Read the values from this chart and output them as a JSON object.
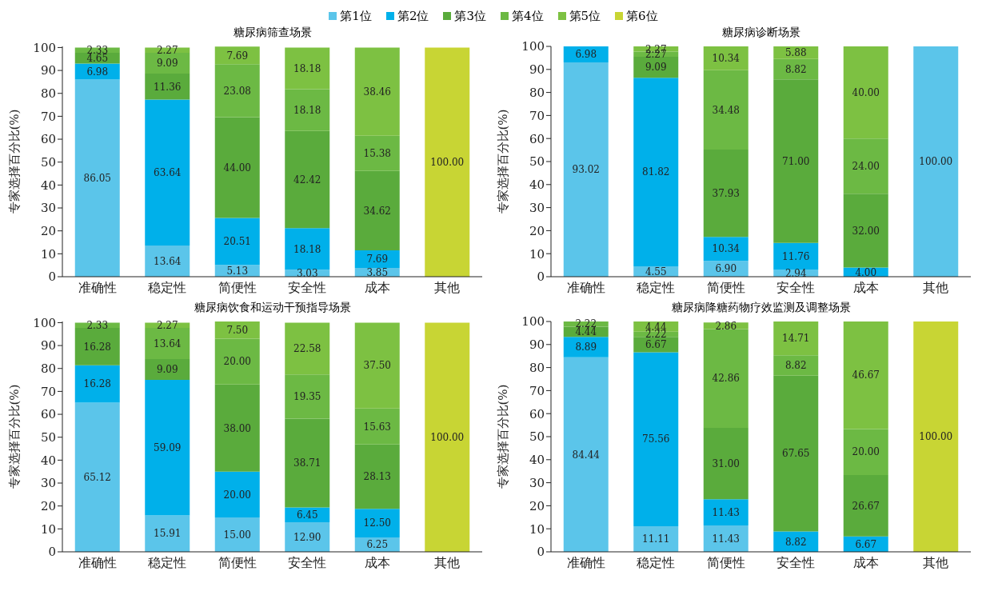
{
  "chart_data": [
    {
      "type": "bar",
      "stacked": true,
      "title": "糖尿病筛查场景",
      "ylabel": "专家选择百分比(%)",
      "legend": "top",
      "categories": [
        "准确性",
        "稳定性",
        "简便性",
        "安全性",
        "成本",
        "其他"
      ],
      "ylim": [
        0,
        100.5
      ],
      "yticks": [
        0,
        10,
        20,
        30,
        40,
        50,
        60,
        70,
        80,
        90,
        100
      ],
      "series": [
        {
          "name": "第1位",
          "color": "#5bc5ea",
          "values": [
            86.05,
            13.64,
            5.13,
            3.03,
            3.85,
            null
          ],
          "value_labels": [
            "86.05",
            "13.64",
            "5.13",
            "3.03",
            "3.85",
            null
          ]
        },
        {
          "name": "第2位",
          "color": "#00b0ea",
          "values": [
            6.98,
            63.64,
            20.51,
            18.18,
            7.69,
            null
          ],
          "value_labels": [
            "6.98",
            "63.64",
            "20.51",
            "18.18",
            "7.69",
            null
          ]
        },
        {
          "name": "第3位",
          "color": "#5aab3c",
          "values": [
            4.65,
            11.36,
            44.0,
            42.42,
            34.62,
            null
          ],
          "value_labels": [
            "4.65",
            "11.36",
            "44.00",
            "42.42",
            "34.62",
            null
          ]
        },
        {
          "name": "第4位",
          "color": "#6cb944",
          "values": [
            2.33,
            9.09,
            23.08,
            18.18,
            15.38,
            null
          ],
          "value_labels": [
            "2.33",
            "9.09",
            "23.08",
            "18.18",
            "15.38",
            null
          ]
        },
        {
          "name": "第5位",
          "color": "#7dc142",
          "values": [
            null,
            2.27,
            7.69,
            18.18,
            38.46,
            null
          ],
          "value_labels": [
            null,
            "2.27",
            "7.69",
            "18.18",
            "38.46",
            null
          ]
        },
        {
          "name": "第6位",
          "color": "#c8d534",
          "values": [
            null,
            null,
            null,
            null,
            null,
            100
          ],
          "value_labels": [
            null,
            null,
            null,
            null,
            null,
            "100.00"
          ]
        }
      ]
    },
    {
      "type": "bar",
      "stacked": true,
      "title": "糖尿病诊断场景",
      "ylabel": "专家选择百分比(%)",
      "categories": [
        "准确性",
        "稳定性",
        "简便性",
        "安全性",
        "成本",
        "其他"
      ],
      "ylim": [
        0,
        100
      ],
      "yticks": [
        0,
        10,
        20,
        30,
        40,
        50,
        60,
        70,
        80,
        90,
        100
      ],
      "series": [
        {
          "color": "#5bc5ea",
          "values": [
            93.02,
            4.55,
            6.9,
            2.94,
            null,
            100
          ],
          "value_labels": [
            "93.02",
            "4.55",
            "6.90",
            "2.94",
            null,
            "100.00"
          ]
        },
        {
          "color": "#00b0ea",
          "values": [
            6.98,
            81.82,
            10.34,
            11.76,
            4.0,
            null
          ],
          "value_labels": [
            "6.98",
            "81.82",
            "10.34",
            "11.76",
            "4.00",
            null
          ]
        },
        {
          "color": "#5aab3c",
          "values": [
            null,
            9.09,
            37.93,
            71.0,
            32.0,
            null
          ],
          "value_labels": [
            null,
            "9.09",
            "37.93",
            "71.00",
            "32.00",
            null
          ]
        },
        {
          "color": "#6cb944",
          "values": [
            null,
            2.27,
            34.48,
            8.82,
            24.0,
            null
          ],
          "value_labels": [
            null,
            "2.27",
            "34.48",
            "8.82",
            "24.00",
            null
          ]
        },
        {
          "color": "#7dc142",
          "values": [
            null,
            2.27,
            10.34,
            5.88,
            40.0,
            null
          ],
          "value_labels": [
            null,
            "2.27",
            "10.34",
            "5.88",
            "40.00",
            null
          ]
        }
      ]
    },
    {
      "type": "bar",
      "stacked": true,
      "title": "糖尿病饮食和运动干预指导场景",
      "ylabel": "专家选择百分比(%)",
      "categories": [
        "准确性",
        "稳定性",
        "简便性",
        "安全性",
        "成本",
        "其他"
      ],
      "ylim": [
        0,
        100.5
      ],
      "yticks": [
        0,
        10,
        20,
        30,
        40,
        50,
        60,
        70,
        80,
        90,
        100
      ],
      "series": [
        {
          "color": "#5bc5ea",
          "values": [
            65.12,
            15.91,
            15.0,
            12.9,
            6.25,
            null
          ],
          "value_labels": [
            "65.12",
            "15.91",
            "15.00",
            "12.90",
            "6.25",
            null
          ]
        },
        {
          "color": "#00b0ea",
          "values": [
            16.28,
            59.09,
            20.0,
            6.45,
            12.5,
            null
          ],
          "value_labels": [
            "16.28",
            "59.09",
            "20.00",
            "6.45",
            "12.50",
            null
          ]
        },
        {
          "color": "#5aab3c",
          "values": [
            16.28,
            9.09,
            38.0,
            38.71,
            28.13,
            null
          ],
          "value_labels": [
            "16.28",
            "9.09",
            "38.00",
            "38.71",
            "28.13",
            null
          ]
        },
        {
          "color": "#6cb944",
          "values": [
            2.33,
            13.64,
            20.0,
            19.35,
            15.63,
            null
          ],
          "value_labels": [
            "2.33",
            "13.64",
            "20.00",
            "19.35",
            "15.63",
            null
          ]
        },
        {
          "color": "#7dc142",
          "values": [
            null,
            2.27,
            7.5,
            22.58,
            37.5,
            null
          ],
          "value_labels": [
            null,
            "2.27",
            "7.50",
            "22.58",
            "37.50",
            null
          ]
        },
        {
          "color": "#c8d534",
          "values": [
            null,
            null,
            null,
            null,
            null,
            100
          ],
          "value_labels": [
            null,
            null,
            null,
            null,
            null,
            "100.00"
          ]
        }
      ]
    },
    {
      "type": "bar",
      "stacked": true,
      "title": "糖尿病降糖药物疗效监测及调整场景",
      "ylabel": "专家选择百分比(%)",
      "categories": [
        "准确性",
        "稳定性",
        "简便性",
        "安全性",
        "成本",
        "其他"
      ],
      "ylim": [
        0,
        100
      ],
      "yticks": [
        0,
        10,
        20,
        30,
        40,
        50,
        60,
        70,
        80,
        90,
        100
      ],
      "series": [
        {
          "color": "#5bc5ea",
          "values": [
            84.44,
            11.11,
            11.43,
            null,
            null,
            null
          ],
          "value_labels": [
            "84.44",
            "11.11",
            "11.43",
            null,
            null,
            null
          ]
        },
        {
          "color": "#00b0ea",
          "values": [
            8.89,
            75.56,
            11.43,
            8.82,
            6.67,
            null
          ],
          "value_labels": [
            "8.89",
            "75.56",
            "11.43",
            "8.82",
            "6.67",
            null
          ]
        },
        {
          "color": "#5aab3c",
          "values": [
            4.44,
            6.67,
            31.0,
            67.65,
            26.67,
            null
          ],
          "value_labels": [
            "4.44",
            "6.67",
            "31.00",
            "67.65",
            "26.67",
            null
          ]
        },
        {
          "color": "#6cb944",
          "values": [
            2.22,
            2.22,
            42.86,
            8.82,
            20.0,
            null
          ],
          "value_labels": [
            "2.22",
            "2.22",
            "42.86",
            "8.82",
            "20.00",
            null
          ]
        },
        {
          "color": "#7dc142",
          "values": [
            null,
            4.44,
            2.86,
            14.71,
            46.67,
            null
          ],
          "value_labels": [
            null,
            "4.44",
            "2.86",
            "14.71",
            "46.67",
            null
          ]
        },
        {
          "color": "#c8d534",
          "values": [
            null,
            null,
            null,
            null,
            null,
            100
          ],
          "value_labels": [
            null,
            null,
            null,
            null,
            null,
            "100.00"
          ]
        }
      ]
    }
  ]
}
